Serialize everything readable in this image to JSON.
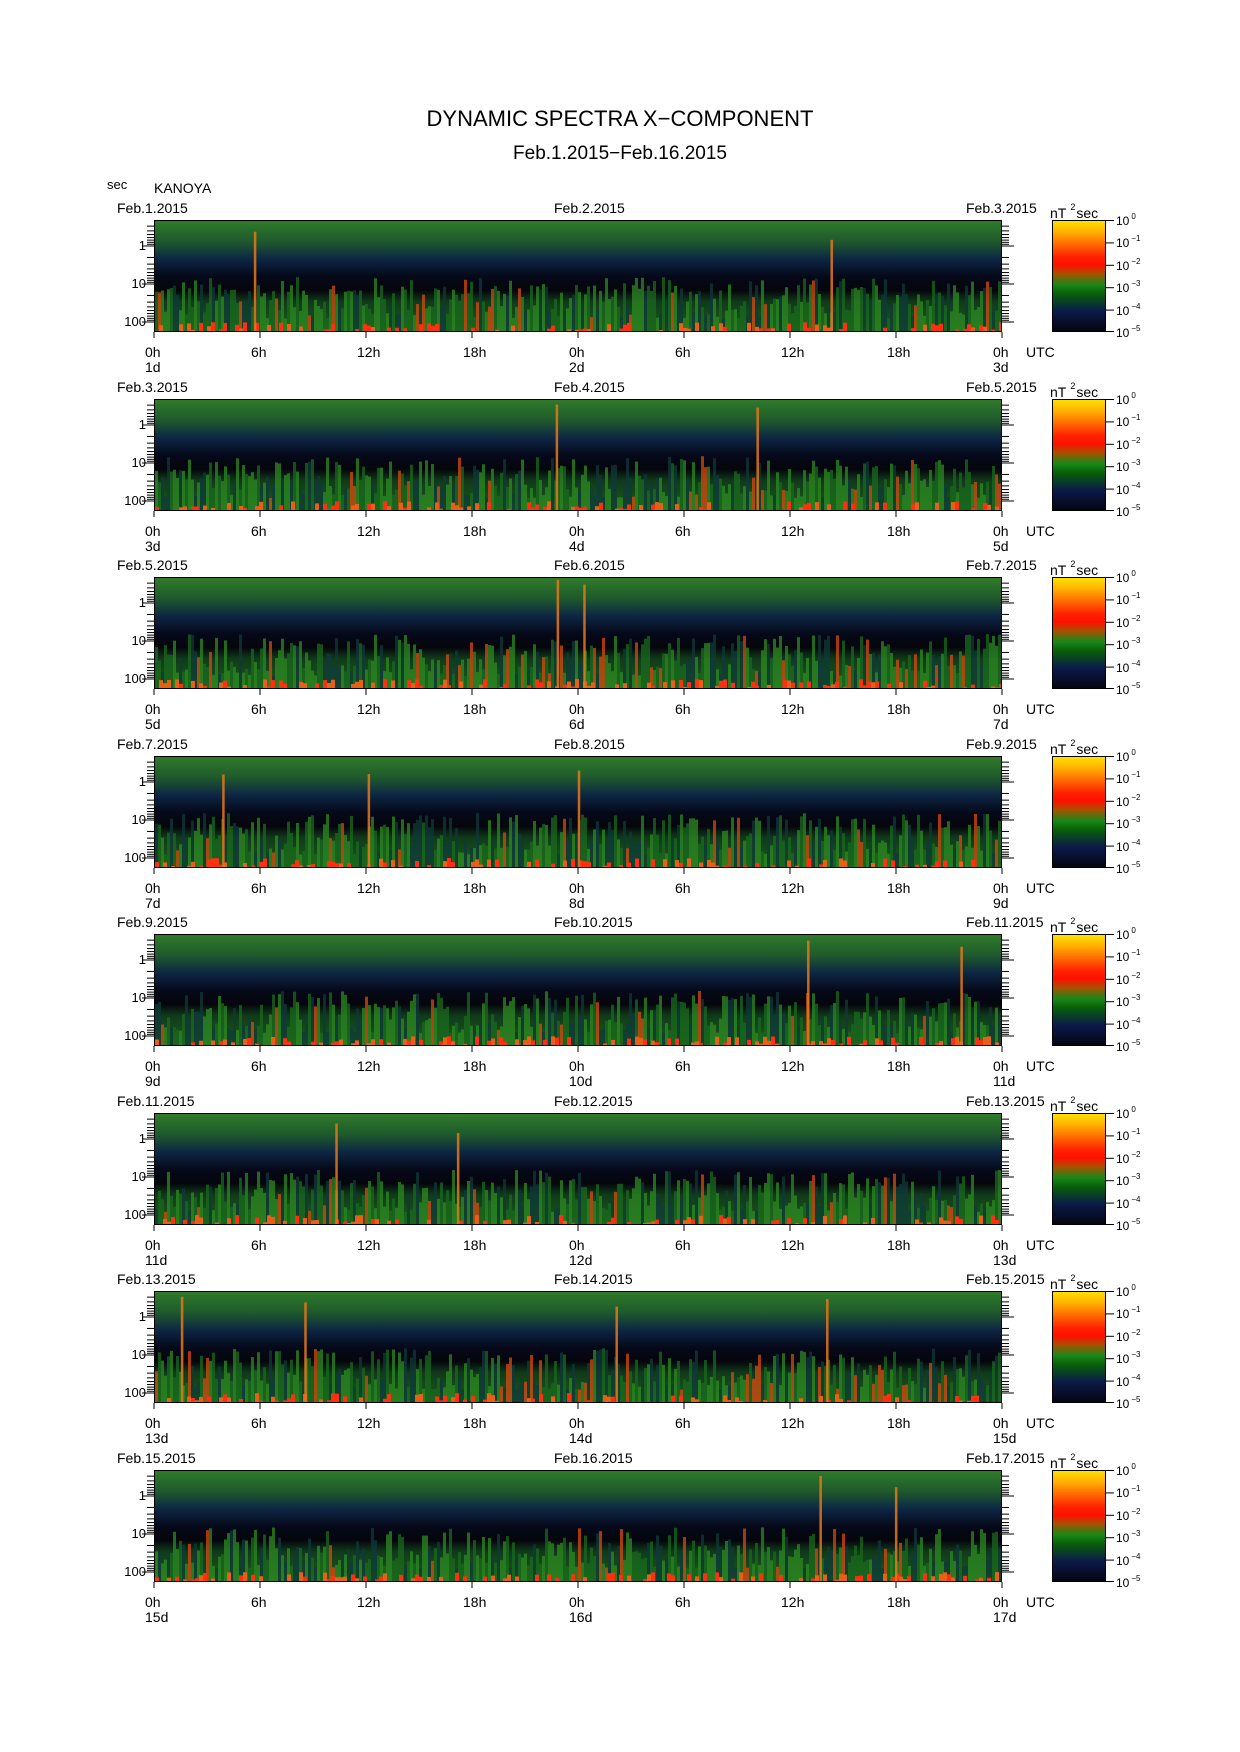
{
  "title": "DYNAMIC SPECTRA X−COMPONENT",
  "subtitle": "Feb.1.2015−Feb.16.2015",
  "y_unit": "sec",
  "station": "KANOYA",
  "colorbar_unit": "nT",
  "colorbar_unit_exp": "2",
  "colorbar_unit_tail": "sec",
  "colorbar_ticks": [
    "10",
    "10",
    "10",
    "10",
    "10",
    "10"
  ],
  "colorbar_exps": [
    "0",
    "−1",
    "−2",
    "−3",
    "−4",
    "−5"
  ],
  "colors": {
    "max": "#ffe000",
    "high": "#ff2000",
    "mid": "#1a8a1a",
    "low": "#0b1a4a",
    "min": "#050510"
  },
  "chart_data": {
    "type": "heatmap",
    "y_axis": {
      "label": "sec",
      "ticks": [
        "1",
        "10",
        "100"
      ],
      "scale": "log",
      "inverted": true
    },
    "x_ticks": [
      "0h",
      "6h",
      "12h",
      "18h",
      "0h",
      "6h",
      "12h",
      "18h",
      "0h"
    ],
    "x_unit": "UTC",
    "colorbar": {
      "min": "10^-5",
      "max": "10^0",
      "scale": "log",
      "unit": "nT^2 sec"
    },
    "panels": [
      {
        "left_date": "Feb.1.2015",
        "mid_date": "Feb.2.2015",
        "right_date": "Feb.3.2015",
        "days": [
          "1d",
          "2d",
          "3d"
        ]
      },
      {
        "left_date": "Feb.3.2015",
        "mid_date": "Feb.4.2015",
        "right_date": "Feb.5.2015",
        "days": [
          "3d",
          "4d",
          "5d"
        ]
      },
      {
        "left_date": "Feb.5.2015",
        "mid_date": "Feb.6.2015",
        "right_date": "Feb.7.2015",
        "days": [
          "5d",
          "6d",
          "7d"
        ]
      },
      {
        "left_date": "Feb.7.2015",
        "mid_date": "Feb.8.2015",
        "right_date": "Feb.9.2015",
        "days": [
          "7d",
          "8d",
          "9d"
        ]
      },
      {
        "left_date": "Feb.9.2015",
        "mid_date": "Feb.10.2015",
        "right_date": "Feb.11.2015",
        "days": [
          "9d",
          "10d",
          "11d"
        ]
      },
      {
        "left_date": "Feb.11.2015",
        "mid_date": "Feb.12.2015",
        "right_date": "Feb.13.2015",
        "days": [
          "11d",
          "12d",
          "13d"
        ]
      },
      {
        "left_date": "Feb.13.2015",
        "mid_date": "Feb.14.2015",
        "right_date": "Feb.15.2015",
        "days": [
          "13d",
          "14d",
          "15d"
        ]
      },
      {
        "left_date": "Feb.15.2015",
        "mid_date": "Feb.16.2015",
        "right_date": "Feb.17.2015",
        "days": [
          "15d",
          "16d",
          "17d"
        ]
      }
    ]
  }
}
